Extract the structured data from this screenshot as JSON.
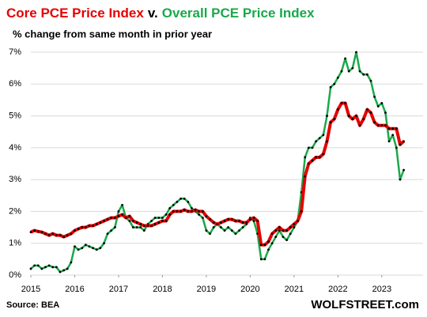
{
  "chart_data": {
    "type": "line",
    "title_segments": [
      {
        "text": "Core PCE Price Index",
        "color": "#e60000"
      },
      {
        "text": "v.",
        "color": "#000000"
      },
      {
        "text": "Overall PCE Price Index",
        "color": "#1aa84a"
      }
    ],
    "subtitle": "% change from same month in prior year",
    "source": "Source: BEA",
    "watermark": "WOLFSTREET.com",
    "x": [
      2015,
      2015.083,
      2015.167,
      2015.25,
      2015.333,
      2015.417,
      2015.5,
      2015.583,
      2015.667,
      2015.75,
      2015.833,
      2015.917,
      2016,
      2016.083,
      2016.167,
      2016.25,
      2016.333,
      2016.417,
      2016.5,
      2016.583,
      2016.667,
      2016.75,
      2016.833,
      2016.917,
      2017,
      2017.083,
      2017.167,
      2017.25,
      2017.333,
      2017.417,
      2017.5,
      2017.583,
      2017.667,
      2017.75,
      2017.833,
      2017.917,
      2018,
      2018.083,
      2018.167,
      2018.25,
      2018.333,
      2018.417,
      2018.5,
      2018.583,
      2018.667,
      2018.75,
      2018.833,
      2018.917,
      2019,
      2019.083,
      2019.167,
      2019.25,
      2019.333,
      2019.417,
      2019.5,
      2019.583,
      2019.667,
      2019.75,
      2019.833,
      2019.917,
      2020,
      2020.083,
      2020.167,
      2020.25,
      2020.333,
      2020.417,
      2020.5,
      2020.583,
      2020.667,
      2020.75,
      2020.833,
      2020.917,
      2021,
      2021.083,
      2021.167,
      2021.25,
      2021.333,
      2021.417,
      2021.5,
      2021.583,
      2021.667,
      2021.75,
      2021.833,
      2021.917,
      2022,
      2022.083,
      2022.167,
      2022.25,
      2022.333,
      2022.417,
      2022.5,
      2022.583,
      2022.667,
      2022.75,
      2022.833,
      2022.917,
      2023,
      2023.083,
      2023.167,
      2023.25,
      2023.333,
      2023.417,
      2023.5
    ],
    "series": [
      {
        "name": "Overall PCE Price Index",
        "color": "#1aa84a",
        "width": 2.5,
        "values": [
          0.2,
          0.3,
          0.3,
          0.2,
          0.25,
          0.3,
          0.25,
          0.25,
          0.1,
          0.15,
          0.2,
          0.4,
          0.9,
          0.8,
          0.85,
          0.95,
          0.9,
          0.85,
          0.8,
          0.85,
          1.0,
          1.3,
          1.4,
          1.5,
          2.0,
          2.2,
          1.8,
          1.7,
          1.5,
          1.5,
          1.5,
          1.4,
          1.6,
          1.7,
          1.8,
          1.8,
          1.8,
          1.9,
          2.1,
          2.2,
          2.3,
          2.4,
          2.4,
          2.3,
          2.1,
          2.0,
          1.9,
          1.8,
          1.4,
          1.3,
          1.5,
          1.6,
          1.5,
          1.4,
          1.5,
          1.4,
          1.3,
          1.4,
          1.5,
          1.6,
          1.8,
          1.7,
          1.3,
          0.5,
          0.5,
          0.8,
          1.0,
          1.2,
          1.4,
          1.2,
          1.1,
          1.3,
          1.5,
          1.7,
          2.6,
          3.7,
          4.0,
          4.0,
          4.2,
          4.3,
          4.4,
          5.0,
          5.9,
          6.0,
          6.2,
          6.4,
          6.8,
          6.4,
          6.5,
          7.0,
          6.4,
          6.3,
          6.3,
          6.1,
          5.6,
          5.3,
          5.4,
          5.1,
          4.2,
          4.4,
          4.0,
          3.0,
          3.3
        ]
      },
      {
        "name": "Core PCE Price Index",
        "color": "#e60000",
        "width": 4,
        "values": [
          1.35,
          1.4,
          1.37,
          1.35,
          1.3,
          1.25,
          1.3,
          1.25,
          1.25,
          1.2,
          1.25,
          1.3,
          1.4,
          1.45,
          1.5,
          1.5,
          1.55,
          1.55,
          1.6,
          1.65,
          1.7,
          1.75,
          1.8,
          1.8,
          1.85,
          1.9,
          1.8,
          1.85,
          1.7,
          1.65,
          1.6,
          1.55,
          1.55,
          1.55,
          1.6,
          1.65,
          1.7,
          1.7,
          1.9,
          2.0,
          2.0,
          2.0,
          2.05,
          2.0,
          2.0,
          2.05,
          2.0,
          2.0,
          1.85,
          1.75,
          1.65,
          1.6,
          1.65,
          1.7,
          1.75,
          1.75,
          1.7,
          1.7,
          1.65,
          1.65,
          1.75,
          1.8,
          1.7,
          0.95,
          0.95,
          1.05,
          1.3,
          1.4,
          1.5,
          1.4,
          1.4,
          1.5,
          1.6,
          1.7,
          2.0,
          3.1,
          3.5,
          3.6,
          3.7,
          3.7,
          3.8,
          4.2,
          4.8,
          4.9,
          5.2,
          5.4,
          5.4,
          5.0,
          4.9,
          5.0,
          4.7,
          4.9,
          5.2,
          5.1,
          4.8,
          4.7,
          4.7,
          4.7,
          4.6,
          4.6,
          4.6,
          4.1,
          4.2
        ]
      }
    ],
    "marker_color": "#000000",
    "xlim": [
      2015,
      2023.85
    ],
    "xticks": [
      2015,
      2016,
      2017,
      2018,
      2019,
      2020,
      2021,
      2022,
      2023
    ],
    "ylim": [
      0,
      7
    ],
    "yticks": [
      {
        "value": 0,
        "label": "0%"
      },
      {
        "value": 1,
        "label": "1%"
      },
      {
        "value": 2,
        "label": "2%"
      },
      {
        "value": 3,
        "label": "3%"
      },
      {
        "value": 4,
        "label": "4%"
      },
      {
        "value": 5,
        "label": "5%"
      },
      {
        "value": 6,
        "label": "6%"
      },
      {
        "value": 7,
        "label": "7%"
      }
    ],
    "grid": true
  }
}
